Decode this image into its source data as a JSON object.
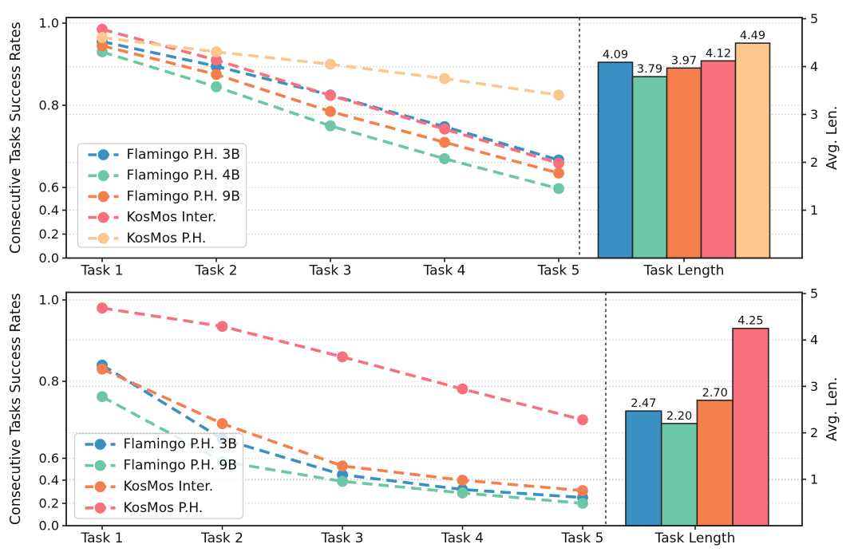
{
  "palette": {
    "blue": "#3a90c2",
    "teal": "#6cc7a6",
    "orange": "#f57f4c",
    "red": "#f8707d",
    "peach": "#fbc78f",
    "axis": "#1c1c1c",
    "grid": "#cbcbcb",
    "divider": "#3f3f3f",
    "legend_border": "#cccccc",
    "text": "#111111"
  },
  "chart_data": [
    {
      "type": "line+bar",
      "position": "top",
      "ylabel_left": "Consecutive Tasks Success Rates",
      "ylabel_right": "Avg. Len.",
      "bar_group_label": "Task Length",
      "categories": [
        "Task 1",
        "Task 2",
        "Task 3",
        "Task 4",
        "Task 5"
      ],
      "ytick_labels_left": [
        "1.0",
        "0.8",
        "0.6",
        "0.4",
        "0.2",
        "0.0"
      ],
      "ytick_values_left": [
        1.0,
        0.8,
        0.6,
        0.4,
        0.2,
        0.0
      ],
      "ytick_values_right": [
        5,
        4,
        3,
        2,
        1
      ],
      "ylim_right": [
        0,
        5
      ],
      "grid": true,
      "line_style": "dashed",
      "legend_position": "lower left",
      "series": [
        {
          "name": "Flamingo P.H. 3B",
          "color": "blue",
          "values": [
            0.955,
            0.895,
            0.825,
            0.748,
            0.667
          ],
          "avg_len": 4.09
        },
        {
          "name": "Flamingo P.H. 4B",
          "color": "teal",
          "values": [
            0.93,
            0.845,
            0.75,
            0.67,
            0.59
          ],
          "avg_len": 3.79
        },
        {
          "name": "Flamingo P.H. 9B",
          "color": "orange",
          "values": [
            0.945,
            0.875,
            0.785,
            0.71,
            0.635
          ],
          "avg_len": 3.97
        },
        {
          "name": "KosMos Inter.",
          "color": "red",
          "values": [
            0.985,
            0.91,
            0.824,
            0.742,
            0.659
          ],
          "avg_len": 4.12
        },
        {
          "name": "KosMos P.H.",
          "color": "peach",
          "values": [
            0.965,
            0.93,
            0.9,
            0.865,
            0.825
          ],
          "avg_len": 4.49
        }
      ],
      "bar_value_labels": [
        "4.09",
        "3.79",
        "3.97",
        "4.12",
        "4.49"
      ]
    },
    {
      "type": "line+bar",
      "position": "bottom",
      "ylabel_left": "Consecutive Tasks Success Rates",
      "ylabel_right": "Avg. Len.",
      "bar_group_label": "Task Length",
      "categories": [
        "Task 1",
        "Task 2",
        "Task 3",
        "Task 4",
        "Task 5"
      ],
      "ytick_labels_left": [
        "1.0",
        "0.8",
        "0.6",
        "0.4",
        "0.2",
        "0.0"
      ],
      "ytick_values_left": [
        1.0,
        0.8,
        0.6,
        0.4,
        0.2,
        0.0
      ],
      "ytick_values_right": [
        5,
        4,
        3,
        2,
        1
      ],
      "ylim_right": [
        0,
        5
      ],
      "grid": true,
      "line_style": "dashed",
      "legend_position": "lower left",
      "series": [
        {
          "name": "Flamingo P.H. 3B",
          "color": "blue",
          "values": [
            0.84,
            0.65,
            0.45,
            0.32,
            0.25
          ],
          "avg_len": 2.47
        },
        {
          "name": "Flamingo P.H. 9B",
          "color": "teal",
          "values": [
            0.76,
            0.57,
            0.39,
            0.29,
            0.2
          ],
          "avg_len": 2.2
        },
        {
          "name": "KosMos Inter.",
          "color": "orange",
          "values": [
            0.83,
            0.69,
            0.53,
            0.4,
            0.31
          ],
          "avg_len": 2.7
        },
        {
          "name": "KosMos P.H.",
          "color": "red",
          "values": [
            0.98,
            0.935,
            0.86,
            0.78,
            0.7
          ],
          "avg_len": 4.25
        }
      ],
      "bar_value_labels": [
        "2.47",
        "2.20",
        "2.70",
        "4.25"
      ]
    }
  ]
}
